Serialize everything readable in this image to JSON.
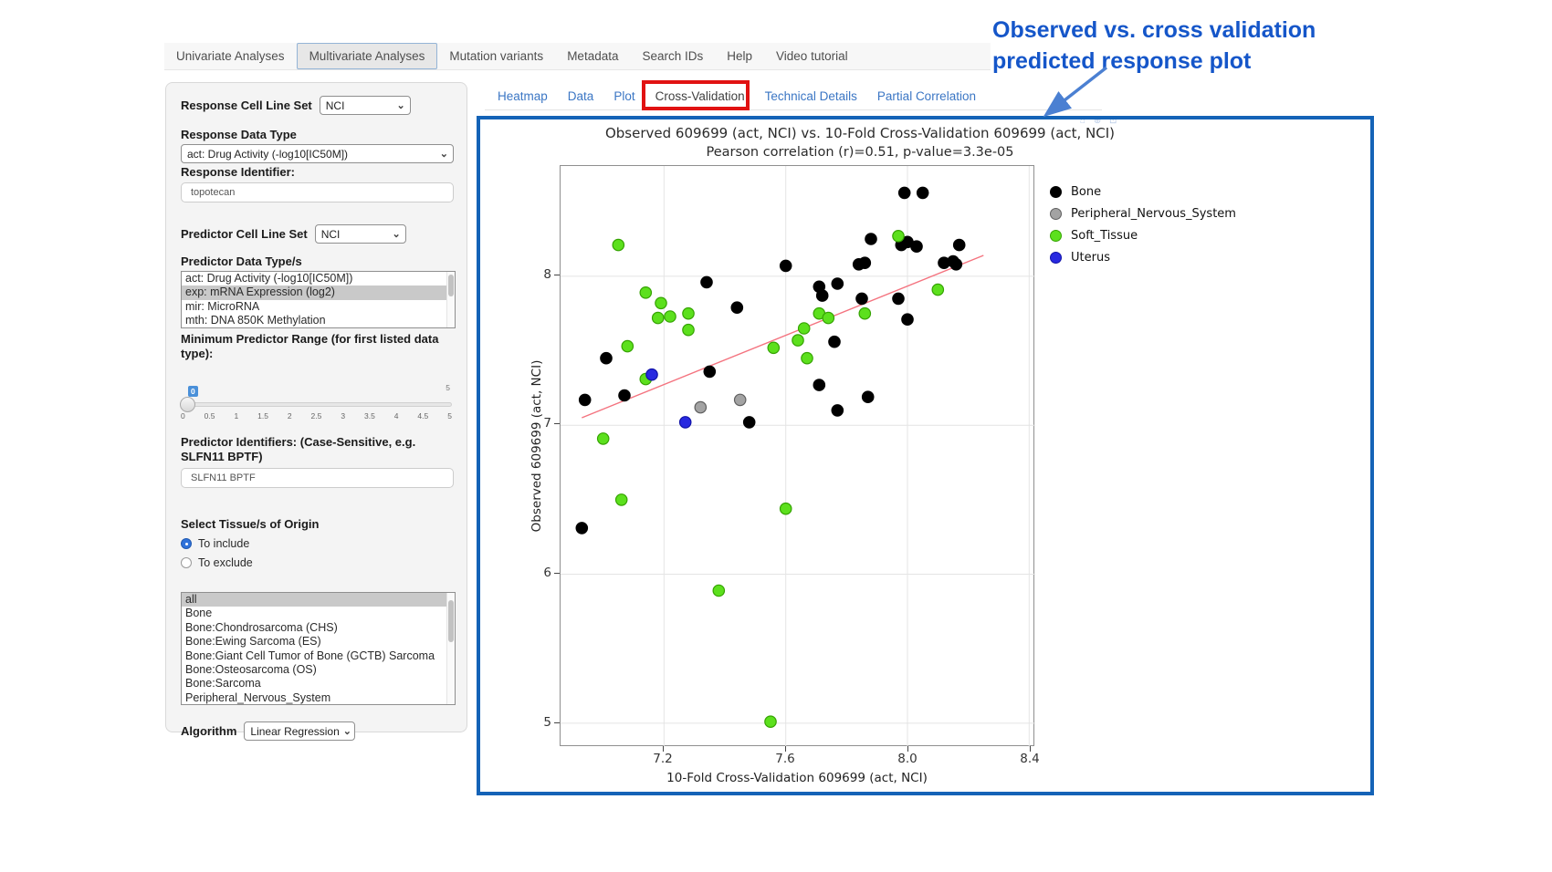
{
  "nav": {
    "active_tab": "Multivariate Analyses",
    "tabs": [
      {
        "label": "Univariate Analyses"
      },
      {
        "label": "Multivariate Analyses"
      },
      {
        "label": "Mutation variants"
      },
      {
        "label": "Metadata"
      },
      {
        "label": "Search IDs"
      },
      {
        "label": "Help"
      },
      {
        "label": "Video tutorial"
      }
    ]
  },
  "sidebar": {
    "response_cell_line_set": {
      "label": "Response Cell Line Set",
      "value": "NCI"
    },
    "response_data_type": {
      "label": "Response Data Type",
      "value": "act: Drug Activity (-log10[IC50M])"
    },
    "response_identifier": {
      "label": "Response Identifier:",
      "value": "topotecan"
    },
    "predictor_cell_line_set": {
      "label": "Predictor Cell Line Set",
      "value": "NCI"
    },
    "predictor_data_types": {
      "label": "Predictor Data Type/s",
      "options": [
        "act: Drug Activity (-log10[IC50M])",
        "exp: mRNA Expression (log2)",
        "mir: MicroRNA",
        "mth: DNA 850K Methylation"
      ],
      "selected": "exp: mRNA Expression (log2)"
    },
    "min_predictor_range": {
      "label": "Minimum Predictor Range (for first listed data type):",
      "value": "0",
      "max_label": "5",
      "ticks": [
        "0",
        "0.5",
        "1",
        "1.5",
        "2",
        "2.5",
        "3",
        "3.5",
        "4",
        "4.5",
        "5"
      ]
    },
    "predictor_identifiers": {
      "label": "Predictor Identifiers: (Case-Sensitive, e.g. SLFN11 BPTF)",
      "value": "SLFN11 BPTF"
    },
    "tissue": {
      "label": "Select Tissue/s of Origin",
      "include_label": "To include",
      "exclude_label": "To exclude",
      "selected_mode": "include",
      "options": [
        "all",
        "Bone",
        "Bone:Chondrosarcoma (CHS)",
        "Bone:Ewing Sarcoma (ES)",
        "Bone:Giant Cell Tumor of Bone (GCTB) Sarcoma",
        "Bone:Osteosarcoma (OS)",
        "Bone:Sarcoma",
        "Peripheral_Nervous_System"
      ],
      "selected": "all"
    },
    "algorithm": {
      "label": "Algorithm",
      "value": "Linear Regression"
    }
  },
  "content_tabs": {
    "active_tab": "Cross-Validation",
    "tabs": [
      {
        "label": "Heatmap"
      },
      {
        "label": "Data"
      },
      {
        "label": "Plot"
      },
      {
        "label": "Cross-Validation"
      },
      {
        "label": "Technical Details"
      },
      {
        "label": "Partial Correlation"
      }
    ]
  },
  "annotation": {
    "line1": "Observed vs. cross validation",
    "line2": "predicted response plot",
    "color": "#1556c9",
    "arrow_color": "#4b80d2"
  },
  "plot_toolbar": {
    "icons": [
      "home-icon",
      "zoom-in-icon",
      "box-select-icon"
    ],
    "glyphs": "⌂ ⊕ ⊡"
  },
  "chart_data": {
    "type": "scatter",
    "title": "Observed 609699 (act, NCI) vs. 10-Fold Cross-Validation 609699 (act, NCI)",
    "subtitle": "Pearson correlation (r)=0.51, p-value=3.3e-05",
    "xlabel": "10-Fold Cross-Validation 609699 (act, NCI)",
    "ylabel": "Observed 609699 (act, NCI)",
    "xlim": [
      6.86,
      8.42
    ],
    "ylim": [
      4.84,
      8.74
    ],
    "xticks": [
      7.2,
      7.6,
      8.0,
      8.4
    ],
    "xtick_labels": [
      "7.2",
      "7.6",
      "8.0",
      "8.4"
    ],
    "yticks": [
      8,
      7,
      6,
      5
    ],
    "ytick_labels": [
      "8",
      "7",
      "6",
      "5"
    ],
    "grid": true,
    "legend_position": "right",
    "regression_line": {
      "x1": 6.93,
      "y1": 7.05,
      "x2": 8.25,
      "y2": 8.14,
      "color": "#f4737f"
    },
    "series": [
      {
        "name": "Bone",
        "color": "#000000",
        "edge": "#000000",
        "points": [
          [
            7.01,
            7.45
          ],
          [
            7.34,
            7.96
          ],
          [
            7.44,
            7.79
          ],
          [
            7.35,
            7.36
          ],
          [
            6.94,
            7.17
          ],
          [
            7.07,
            7.2
          ],
          [
            7.99,
            8.56
          ],
          [
            8.05,
            8.56
          ],
          [
            7.88,
            8.25
          ],
          [
            7.98,
            8.21
          ],
          [
            8.0,
            8.23
          ],
          [
            8.03,
            8.2
          ],
          [
            8.17,
            8.21
          ],
          [
            7.6,
            8.07
          ],
          [
            7.84,
            8.08
          ],
          [
            7.86,
            8.09
          ],
          [
            8.12,
            8.09
          ],
          [
            8.15,
            8.1
          ],
          [
            8.16,
            8.08
          ],
          [
            7.71,
            7.93
          ],
          [
            7.77,
            7.95
          ],
          [
            7.72,
            7.87
          ],
          [
            7.85,
            7.85
          ],
          [
            7.97,
            7.85
          ],
          [
            8.0,
            7.71
          ],
          [
            7.76,
            7.56
          ],
          [
            7.71,
            7.27
          ],
          [
            7.87,
            7.19
          ],
          [
            7.77,
            7.1
          ],
          [
            7.48,
            7.02
          ],
          [
            6.93,
            6.31
          ]
        ]
      },
      {
        "name": "Peripheral_Nervous_System",
        "color": "#a3a3a3",
        "edge": "#5f5f5f",
        "points": [
          [
            7.32,
            7.12
          ],
          [
            7.45,
            7.17
          ]
        ]
      },
      {
        "name": "Soft_Tissue",
        "color": "#5ce01d",
        "edge": "#35a302",
        "points": [
          [
            7.05,
            8.21
          ],
          [
            7.14,
            7.89
          ],
          [
            7.19,
            7.82
          ],
          [
            7.18,
            7.72
          ],
          [
            7.22,
            7.73
          ],
          [
            7.28,
            7.75
          ],
          [
            7.28,
            7.64
          ],
          [
            7.08,
            7.53
          ],
          [
            7.14,
            7.31
          ],
          [
            7.97,
            8.27
          ],
          [
            8.1,
            7.91
          ],
          [
            7.71,
            7.75
          ],
          [
            7.74,
            7.72
          ],
          [
            7.86,
            7.75
          ],
          [
            7.66,
            7.65
          ],
          [
            7.64,
            7.57
          ],
          [
            7.56,
            7.52
          ],
          [
            7.67,
            7.45
          ],
          [
            7.0,
            6.91
          ],
          [
            7.06,
            6.5
          ],
          [
            7.38,
            5.89
          ],
          [
            7.6,
            6.44
          ],
          [
            7.55,
            5.01
          ]
        ]
      },
      {
        "name": "Uterus",
        "color": "#2829e0",
        "edge": "#1113a8",
        "points": [
          [
            7.16,
            7.34
          ],
          [
            7.27,
            7.02
          ]
        ]
      }
    ]
  }
}
